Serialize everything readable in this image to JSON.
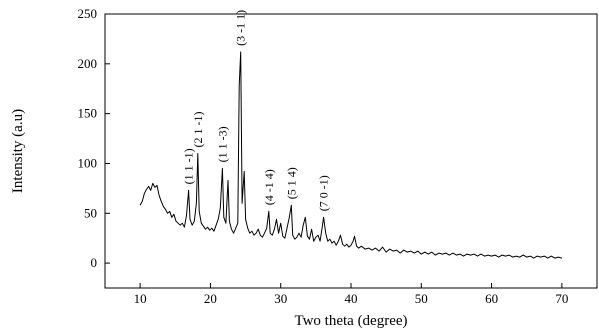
{
  "chart_data": {
    "type": "line",
    "title": "",
    "xlabel": "Two theta (degree)",
    "ylabel": "Intensity (a.u)",
    "xlim": [
      5,
      75
    ],
    "ylim": [
      -25,
      250
    ],
    "x_ticks": [
      10,
      20,
      30,
      40,
      50,
      60,
      70
    ],
    "y_ticks": [
      0,
      50,
      100,
      150,
      200,
      250
    ],
    "grid": false,
    "legend": "none",
    "series": [
      {
        "color": "#000000",
        "points": [
          [
            10.0,
            58
          ],
          [
            10.3,
            62
          ],
          [
            10.6,
            70
          ],
          [
            10.9,
            74
          ],
          [
            11.2,
            77
          ],
          [
            11.5,
            73
          ],
          [
            11.8,
            80
          ],
          [
            12.1,
            76
          ],
          [
            12.4,
            78
          ],
          [
            12.7,
            68
          ],
          [
            13.0,
            62
          ],
          [
            13.3,
            57
          ],
          [
            13.6,
            54
          ],
          [
            13.9,
            50
          ],
          [
            14.2,
            52
          ],
          [
            14.5,
            46
          ],
          [
            14.8,
            49
          ],
          [
            15.1,
            42
          ],
          [
            15.4,
            40
          ],
          [
            15.7,
            38
          ],
          [
            16.0,
            40
          ],
          [
            16.3,
            36
          ],
          [
            16.6,
            48
          ],
          [
            16.9,
            73
          ],
          [
            17.1,
            44
          ],
          [
            17.4,
            38
          ],
          [
            17.7,
            42
          ],
          [
            18.0,
            60
          ],
          [
            18.2,
            110
          ],
          [
            18.4,
            52
          ],
          [
            18.7,
            40
          ],
          [
            19.0,
            37
          ],
          [
            19.3,
            34
          ],
          [
            19.6,
            36
          ],
          [
            19.9,
            33
          ],
          [
            20.2,
            35
          ],
          [
            20.5,
            32
          ],
          [
            20.8,
            38
          ],
          [
            21.1,
            44
          ],
          [
            21.4,
            55
          ],
          [
            21.7,
            95
          ],
          [
            21.9,
            46
          ],
          [
            22.2,
            40
          ],
          [
            22.5,
            83
          ],
          [
            22.7,
            42
          ],
          [
            23.0,
            34
          ],
          [
            23.3,
            30
          ],
          [
            23.6,
            35
          ],
          [
            23.9,
            40
          ],
          [
            24.1,
            178
          ],
          [
            24.3,
            212
          ],
          [
            24.5,
            60
          ],
          [
            24.8,
            92
          ],
          [
            25.0,
            44
          ],
          [
            25.3,
            35
          ],
          [
            25.6,
            30
          ],
          [
            25.9,
            32
          ],
          [
            26.2,
            28
          ],
          [
            26.5,
            30
          ],
          [
            26.8,
            34
          ],
          [
            27.1,
            28
          ],
          [
            27.4,
            26
          ],
          [
            27.7,
            30
          ],
          [
            28.0,
            35
          ],
          [
            28.3,
            52
          ],
          [
            28.5,
            30
          ],
          [
            28.8,
            28
          ],
          [
            29.1,
            34
          ],
          [
            29.4,
            44
          ],
          [
            29.7,
            30
          ],
          [
            30.0,
            40
          ],
          [
            30.3,
            27
          ],
          [
            30.6,
            25
          ],
          [
            30.9,
            35
          ],
          [
            31.2,
            45
          ],
          [
            31.5,
            58
          ],
          [
            31.7,
            28
          ],
          [
            32.0,
            24
          ],
          [
            32.3,
            26
          ],
          [
            32.6,
            30
          ],
          [
            32.9,
            26
          ],
          [
            33.2,
            38
          ],
          [
            33.5,
            46
          ],
          [
            33.8,
            27
          ],
          [
            34.1,
            24
          ],
          [
            34.4,
            34
          ],
          [
            34.7,
            22
          ],
          [
            35.0,
            26
          ],
          [
            35.3,
            28
          ],
          [
            35.6,
            22
          ],
          [
            35.9,
            36
          ],
          [
            36.1,
            46
          ],
          [
            36.4,
            30
          ],
          [
            36.7,
            22
          ],
          [
            37.0,
            24
          ],
          [
            37.3,
            20
          ],
          [
            37.6,
            22
          ],
          [
            37.9,
            18
          ],
          [
            38.2,
            22
          ],
          [
            38.5,
            28
          ],
          [
            38.8,
            19
          ],
          [
            39.1,
            17
          ],
          [
            39.4,
            19
          ],
          [
            39.7,
            16
          ],
          [
            40.0,
            18
          ],
          [
            40.3,
            22
          ],
          [
            40.5,
            27
          ],
          [
            40.8,
            17
          ],
          [
            41.1,
            15
          ],
          [
            41.5,
            17
          ],
          [
            42.0,
            14
          ],
          [
            42.5,
            15
          ],
          [
            43.0,
            13
          ],
          [
            43.5,
            15
          ],
          [
            44.0,
            12
          ],
          [
            44.5,
            16
          ],
          [
            45.0,
            11
          ],
          [
            45.5,
            14
          ],
          [
            46.0,
            12
          ],
          [
            46.5,
            13
          ],
          [
            47.0,
            10
          ],
          [
            47.5,
            13
          ],
          [
            48.0,
            11
          ],
          [
            48.5,
            12
          ],
          [
            49.0,
            10
          ],
          [
            49.5,
            12
          ],
          [
            50.0,
            9
          ],
          [
            50.5,
            11
          ],
          [
            51.0,
            9
          ],
          [
            51.5,
            11
          ],
          [
            52.0,
            8
          ],
          [
            52.5,
            10
          ],
          [
            53.0,
            9
          ],
          [
            53.5,
            10
          ],
          [
            54.0,
            8
          ],
          [
            54.5,
            10
          ],
          [
            55.0,
            8
          ],
          [
            55.5,
            9
          ],
          [
            56.0,
            7
          ],
          [
            56.5,
            9
          ],
          [
            57.0,
            8
          ],
          [
            57.5,
            9
          ],
          [
            58.0,
            7
          ],
          [
            58.5,
            9
          ],
          [
            59.0,
            7
          ],
          [
            59.5,
            8
          ],
          [
            60.0,
            7
          ],
          [
            60.5,
            8
          ],
          [
            61.0,
            6
          ],
          [
            61.5,
            8
          ],
          [
            62.0,
            7
          ],
          [
            62.5,
            8
          ],
          [
            63.0,
            6
          ],
          [
            63.5,
            7
          ],
          [
            64.0,
            6
          ],
          [
            64.5,
            8
          ],
          [
            65.0,
            6
          ],
          [
            65.5,
            7
          ],
          [
            66.0,
            5
          ],
          [
            66.5,
            7
          ],
          [
            67.0,
            6
          ],
          [
            67.5,
            7
          ],
          [
            68.0,
            5
          ],
          [
            68.5,
            7
          ],
          [
            69.0,
            5
          ],
          [
            69.5,
            6
          ],
          [
            70.0,
            5
          ]
        ]
      }
    ],
    "annotations": [
      {
        "text": "(1 1 -1)",
        "x": 16.9,
        "y": 76
      },
      {
        "text": "(2 1 -1)",
        "x": 18.2,
        "y": 113
      },
      {
        "text": "(1 1 -3)",
        "x": 21.7,
        "y": 98
      },
      {
        "text": "(3 -1 1)",
        "x": 24.3,
        "y": 215
      },
      {
        "text": "(4 -1 4)",
        "x": 28.3,
        "y": 55
      },
      {
        "text": "(5 1 4)",
        "x": 31.5,
        "y": 61
      },
      {
        "text": "(7 0 -1)",
        "x": 36.1,
        "y": 49
      }
    ]
  }
}
